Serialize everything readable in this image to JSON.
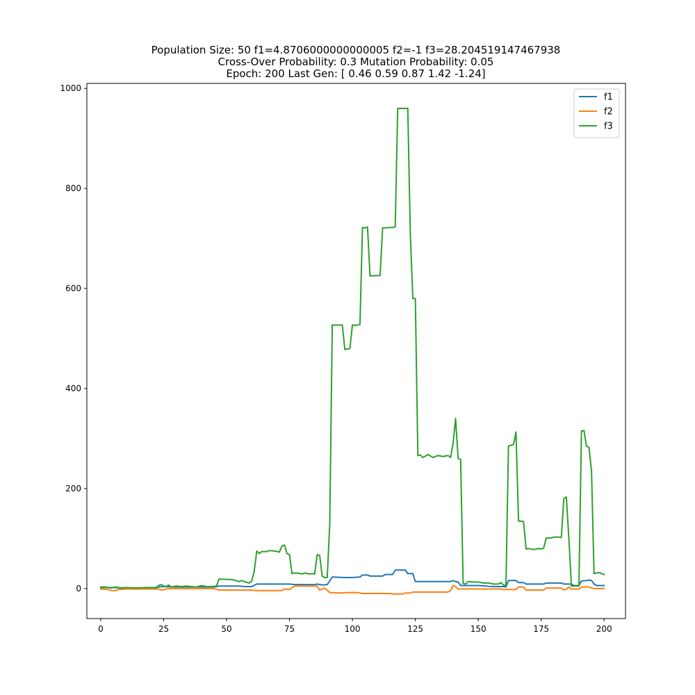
{
  "chart_data": {
    "type": "line",
    "title_lines": [
      "Population Size: 50 f1=4.8706000000000005 f2=-1 f3=28.204519147467938",
      "Cross-Over Probability: 0.3 Mutation Probability: 0.05",
      "Epoch: 200 Last Gen: [ 0.46  0.59  0.87  1.42 -1.24]"
    ],
    "xlabel": "",
    "ylabel": "",
    "xlim": [
      -5.5,
      208.5
    ],
    "ylim": [
      -60,
      1010
    ],
    "x_ticks": [
      0,
      25,
      50,
      75,
      100,
      125,
      150,
      175,
      200
    ],
    "y_ticks": [
      0,
      200,
      400,
      600,
      800,
      1000
    ],
    "legend_position": "top-right",
    "grid": false,
    "series": [
      {
        "name": "f1",
        "color": "#1f77b4",
        "points": [
          [
            0,
            2
          ],
          [
            5,
            2
          ],
          [
            10,
            1
          ],
          [
            20,
            1
          ],
          [
            23,
            3
          ],
          [
            25,
            4
          ],
          [
            30,
            3
          ],
          [
            45,
            3
          ],
          [
            47,
            5
          ],
          [
            55,
            5
          ],
          [
            57,
            4
          ],
          [
            60,
            4
          ],
          [
            62,
            9
          ],
          [
            72,
            9
          ],
          [
            75,
            9
          ],
          [
            77,
            8
          ],
          [
            85,
            8
          ],
          [
            86,
            9
          ],
          [
            88,
            7
          ],
          [
            90,
            8
          ],
          [
            92,
            23
          ],
          [
            97,
            22
          ],
          [
            100,
            22
          ],
          [
            103,
            23
          ],
          [
            104,
            27
          ],
          [
            106,
            27
          ],
          [
            107,
            25
          ],
          [
            112,
            25
          ],
          [
            113,
            28
          ],
          [
            116,
            28
          ],
          [
            117,
            37
          ],
          [
            121,
            37
          ],
          [
            122,
            30
          ],
          [
            124,
            30
          ],
          [
            125,
            14
          ],
          [
            139,
            14
          ],
          [
            140,
            16
          ],
          [
            141,
            14
          ],
          [
            142,
            13
          ],
          [
            143,
            6
          ],
          [
            150,
            6
          ],
          [
            153,
            5
          ],
          [
            155,
            4
          ],
          [
            160,
            4
          ],
          [
            161,
            3
          ],
          [
            162,
            16
          ],
          [
            165,
            16
          ],
          [
            166,
            12
          ],
          [
            168,
            12
          ],
          [
            169,
            9
          ],
          [
            176,
            9
          ],
          [
            177,
            11
          ],
          [
            183,
            11
          ],
          [
            184,
            9
          ],
          [
            187,
            9
          ],
          [
            188,
            6
          ],
          [
            190,
            6
          ],
          [
            191,
            15
          ],
          [
            193,
            16
          ],
          [
            194,
            17
          ],
          [
            195,
            16
          ],
          [
            196,
            9
          ],
          [
            197,
            6
          ],
          [
            200,
            6
          ]
        ]
      },
      {
        "name": "f2",
        "color": "#ff7f0e",
        "points": [
          [
            0,
            -1
          ],
          [
            3,
            -2
          ],
          [
            4,
            -4
          ],
          [
            6,
            -4
          ],
          [
            7,
            -2
          ],
          [
            10,
            -1
          ],
          [
            20,
            -1
          ],
          [
            23,
            -1
          ],
          [
            24,
            -3
          ],
          [
            25,
            -2
          ],
          [
            27,
            0
          ],
          [
            45,
            0
          ],
          [
            47,
            -3
          ],
          [
            60,
            -3
          ],
          [
            62,
            -4
          ],
          [
            72,
            -4
          ],
          [
            73,
            -1
          ],
          [
            75,
            -2
          ],
          [
            77,
            5
          ],
          [
            85,
            5
          ],
          [
            86,
            5
          ],
          [
            87,
            -3
          ],
          [
            88,
            -1
          ],
          [
            89,
            1
          ],
          [
            91,
            -8
          ],
          [
            95,
            -9
          ],
          [
            98,
            -8
          ],
          [
            102,
            -8
          ],
          [
            104,
            -10
          ],
          [
            115,
            -10
          ],
          [
            116,
            -11
          ],
          [
            120,
            -11
          ],
          [
            121,
            -9
          ],
          [
            123,
            -9
          ],
          [
            124,
            -7
          ],
          [
            138,
            -7
          ],
          [
            139,
            -4
          ],
          [
            140,
            6
          ],
          [
            141,
            4
          ],
          [
            142,
            -1
          ],
          [
            155,
            -1
          ],
          [
            159,
            -1
          ],
          [
            160,
            -2
          ],
          [
            165,
            -2
          ],
          [
            166,
            3
          ],
          [
            168,
            3
          ],
          [
            169,
            -3
          ],
          [
            176,
            -3
          ],
          [
            177,
            1
          ],
          [
            183,
            1
          ],
          [
            184,
            -3
          ],
          [
            185,
            -1
          ],
          [
            186,
            3
          ],
          [
            187,
            -1
          ],
          [
            190,
            -1
          ],
          [
            191,
            3
          ],
          [
            194,
            3
          ],
          [
            195,
            1
          ],
          [
            196,
            0
          ],
          [
            200,
            0
          ]
        ]
      },
      {
        "name": "f3",
        "color": "#2ca02c",
        "points": [
          [
            0,
            3
          ],
          [
            2,
            3
          ],
          [
            4,
            1
          ],
          [
            6,
            3
          ],
          [
            8,
            1
          ],
          [
            10,
            2
          ],
          [
            14,
            1
          ],
          [
            18,
            2
          ],
          [
            20,
            2
          ],
          [
            22,
            1
          ],
          [
            23,
            6
          ],
          [
            24,
            8
          ],
          [
            25,
            5
          ],
          [
            26,
            4
          ],
          [
            27,
            7
          ],
          [
            28,
            3
          ],
          [
            30,
            5
          ],
          [
            32,
            4
          ],
          [
            34,
            5
          ],
          [
            36,
            4
          ],
          [
            38,
            3
          ],
          [
            40,
            6
          ],
          [
            42,
            4
          ],
          [
            44,
            4
          ],
          [
            46,
            5
          ],
          [
            47,
            19
          ],
          [
            52,
            18
          ],
          [
            53,
            17
          ],
          [
            55,
            14
          ],
          [
            56,
            16
          ],
          [
            57,
            14
          ],
          [
            59,
            11
          ],
          [
            60,
            15
          ],
          [
            61,
            35
          ],
          [
            62,
            75
          ],
          [
            63,
            70
          ],
          [
            64,
            74
          ],
          [
            66,
            74
          ],
          [
            67,
            76
          ],
          [
            69,
            75
          ],
          [
            71,
            73
          ],
          [
            72,
            85
          ],
          [
            73,
            87
          ],
          [
            74,
            70
          ],
          [
            75,
            68
          ],
          [
            76,
            30
          ],
          [
            77,
            31
          ],
          [
            78,
            31
          ],
          [
            80,
            29
          ],
          [
            81,
            31
          ],
          [
            83,
            29
          ],
          [
            84,
            30
          ],
          [
            85,
            29
          ],
          [
            86,
            68
          ],
          [
            87,
            66
          ],
          [
            88,
            25
          ],
          [
            89,
            22
          ],
          [
            90,
            22
          ],
          [
            91,
            130
          ],
          [
            92,
            527
          ],
          [
            96,
            527
          ],
          [
            97,
            478
          ],
          [
            99,
            480
          ],
          [
            100,
            527
          ],
          [
            101,
            526
          ],
          [
            103,
            528
          ],
          [
            104,
            722
          ],
          [
            105,
            721
          ],
          [
            106,
            723
          ],
          [
            107,
            625
          ],
          [
            111,
            626
          ],
          [
            112,
            721
          ],
          [
            116,
            722
          ],
          [
            117,
            723
          ],
          [
            118,
            960
          ],
          [
            122,
            960
          ],
          [
            123,
            710
          ],
          [
            124,
            580
          ],
          [
            125,
            580
          ],
          [
            126,
            266
          ],
          [
            127,
            267
          ],
          [
            128,
            262
          ],
          [
            130,
            268
          ],
          [
            132,
            262
          ],
          [
            134,
            266
          ],
          [
            136,
            264
          ],
          [
            138,
            266
          ],
          [
            139,
            262
          ],
          [
            140,
            290
          ],
          [
            141,
            340
          ],
          [
            142,
            260
          ],
          [
            143,
            258
          ],
          [
            144,
            10
          ],
          [
            145,
            9
          ],
          [
            146,
            14
          ],
          [
            148,
            13
          ],
          [
            150,
            13
          ],
          [
            152,
            11
          ],
          [
            154,
            11
          ],
          [
            156,
            9
          ],
          [
            158,
            9
          ],
          [
            159,
            12
          ],
          [
            160,
            7
          ],
          [
            161,
            6
          ],
          [
            162,
            285
          ],
          [
            164,
            288
          ],
          [
            165,
            313
          ],
          [
            166,
            135
          ],
          [
            168,
            134
          ],
          [
            169,
            79
          ],
          [
            170,
            80
          ],
          [
            172,
            78
          ],
          [
            174,
            80
          ],
          [
            175,
            79
          ],
          [
            176,
            81
          ],
          [
            177,
            101
          ],
          [
            179,
            101
          ],
          [
            180,
            103
          ],
          [
            182,
            103
          ],
          [
            183,
            102
          ],
          [
            184,
            180
          ],
          [
            185,
            183
          ],
          [
            186,
            100
          ],
          [
            187,
            5
          ],
          [
            190,
            5
          ],
          [
            191,
            315
          ],
          [
            192,
            316
          ],
          [
            193,
            285
          ],
          [
            194,
            282
          ],
          [
            195,
            235
          ],
          [
            196,
            30
          ],
          [
            197,
            31
          ],
          [
            198,
            32
          ],
          [
            199,
            30
          ],
          [
            200,
            28
          ]
        ]
      }
    ]
  }
}
